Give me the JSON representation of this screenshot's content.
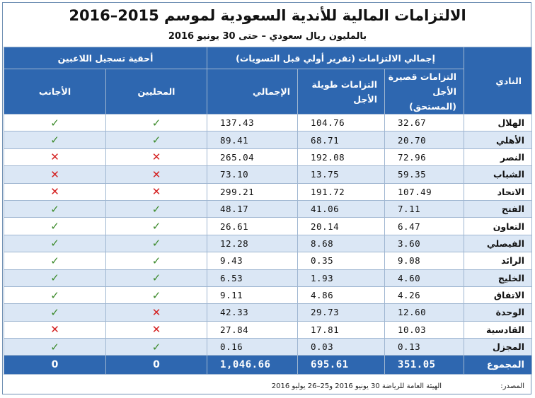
{
  "title": "الالتزامات المالية للأندية السعودية لموسم 2015–2016",
  "subtitle": "بالمليون ريال سعودي – حتى 30 يونيو 2016",
  "headers": {
    "club": "النادي",
    "liabilities_group": "إجمالي الالتزامات (تقرير أولي قبل التسويات)",
    "short_term_line1": "التزامات قصيرة",
    "short_term_line2": "الأجل (المستحق)",
    "long_term": "التزامات طويلة الأجل",
    "total": "الإجمالي",
    "registration_group": "أحقية تسجيل اللاعبين",
    "local": "المحليين",
    "foreign": "الأجانب"
  },
  "rows": [
    {
      "club": "الهلال",
      "short": "32.67",
      "long": "104.76",
      "total": "137.43",
      "local": "✓",
      "foreign": "✓"
    },
    {
      "club": "الأهلي",
      "short": "20.70",
      "long": "68.71",
      "total": "89.41",
      "local": "✓",
      "foreign": "✓"
    },
    {
      "club": "النصر",
      "short": "72.96",
      "long": "192.08",
      "total": "265.04",
      "local": "✕",
      "foreign": "✕"
    },
    {
      "club": "الشباب",
      "short": "59.35",
      "long": "13.75",
      "total": "73.10",
      "local": "✕",
      "foreign": "✕"
    },
    {
      "club": "الاتحاد",
      "short": "107.49",
      "long": "191.72",
      "total": "299.21",
      "local": "✕",
      "foreign": "✕"
    },
    {
      "club": "الفتح",
      "short": "7.11",
      "long": "41.06",
      "total": "48.17",
      "local": "✓",
      "foreign": "✓"
    },
    {
      "club": "التعاون",
      "short": "6.47",
      "long": "20.14",
      "total": "26.61",
      "local": "✓",
      "foreign": "✓"
    },
    {
      "club": "الفيصلي",
      "short": "3.60",
      "long": "8.68",
      "total": "12.28",
      "local": "✓",
      "foreign": "✓"
    },
    {
      "club": "الرائد",
      "short": "9.08",
      "long": "0.35",
      "total": "9.43",
      "local": "✓",
      "foreign": "✓"
    },
    {
      "club": "الخليج",
      "short": "4.60",
      "long": "1.93",
      "total": "6.53",
      "local": "✓",
      "foreign": "✓"
    },
    {
      "club": "الاتفاق",
      "short": "4.26",
      "long": "4.86",
      "total": "9.11",
      "local": "✓",
      "foreign": "✓"
    },
    {
      "club": "الوحدة",
      "short": "12.60",
      "long": "29.73",
      "total": "42.33",
      "local": "✕",
      "foreign": "✓"
    },
    {
      "club": "القادسية",
      "short": "10.03",
      "long": "17.81",
      "total": "27.84",
      "local": "✕",
      "foreign": "✕"
    },
    {
      "club": "المجزل",
      "short": "0.13",
      "long": "0.03",
      "total": "0.16",
      "local": "✓",
      "foreign": "✓"
    }
  ],
  "totals": {
    "club": "المجموع",
    "short": "351.05",
    "long": "695.61",
    "total": "1,046.66",
    "local": "0",
    "foreign": "0"
  },
  "source": {
    "label": "المصدر:",
    "text": "الهيئة العامة للرياضة 30 يونيو 2016 و25–26 يوليو 2016"
  },
  "colors": {
    "header": "#2e67b0",
    "alt_row": "#dbe7f5",
    "yes": "#3b8a2a",
    "no": "#d42121"
  }
}
